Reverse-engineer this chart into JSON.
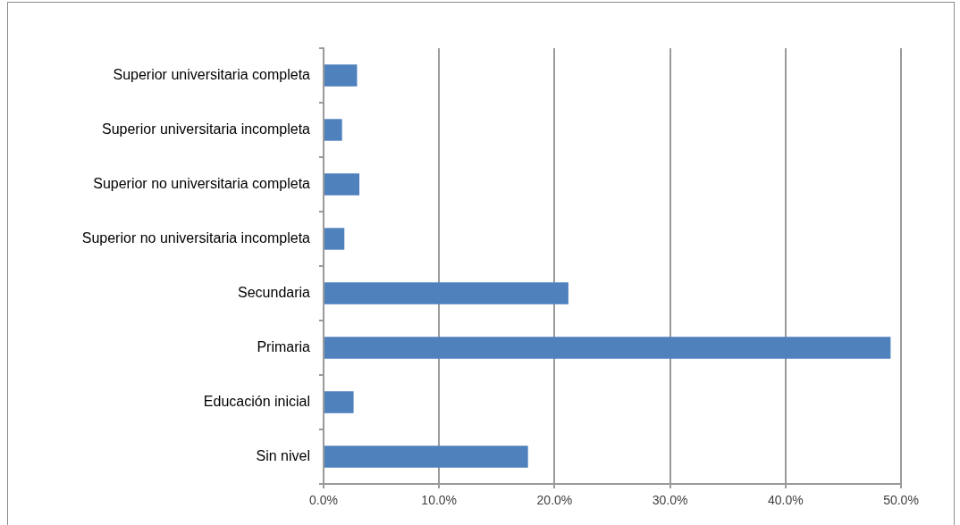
{
  "chart_data": {
    "type": "bar",
    "orientation": "horizontal",
    "categories": [
      "Superior universitaria completa",
      "Superior universitaria incompleta",
      "Superior no universitaria completa",
      "Superior no universitaria incompleta",
      "Secundaria",
      "Primaria",
      "Educación inicial",
      "Sin nivel"
    ],
    "values": [
      2.9,
      1.6,
      3.1,
      1.8,
      21.2,
      49.1,
      2.6,
      17.7
    ],
    "color": "#4f81bd",
    "xlim": [
      0,
      50
    ],
    "xticks": [
      {
        "value": 0,
        "label": "0.0%"
      },
      {
        "value": 10,
        "label": "10.0%"
      },
      {
        "value": 20,
        "label": "20.0%"
      },
      {
        "value": 30,
        "label": "30.0%"
      },
      {
        "value": 40,
        "label": "40.0%"
      },
      {
        "value": 50,
        "label": "50.0%"
      }
    ],
    "grid": "x"
  }
}
